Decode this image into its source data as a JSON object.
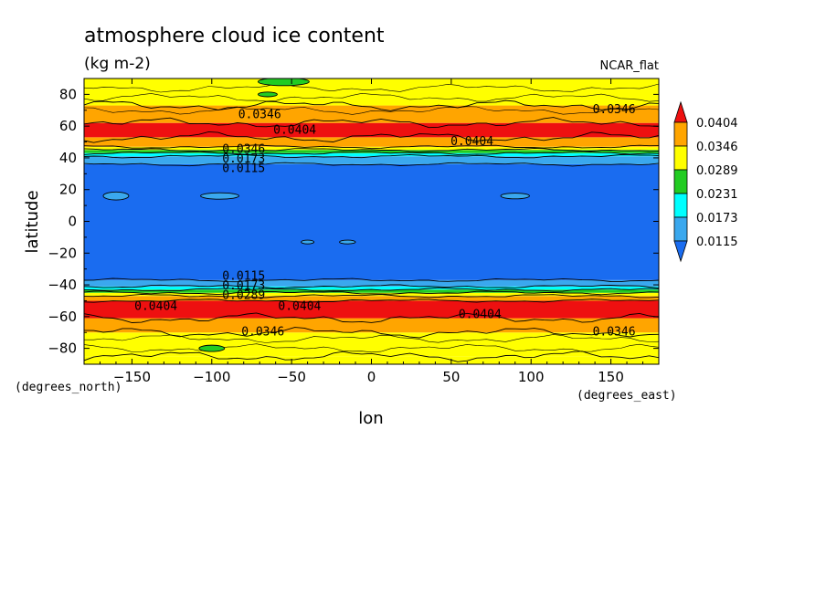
{
  "chart_data": {
    "type": "heatmap",
    "title": "atmosphere cloud ice content",
    "units": "(kg m-2)",
    "colormap_name": "NCAR_flat",
    "xlabel": "lon",
    "ylabel": "latitude",
    "x_unit_label": "(degrees_east)",
    "y_unit_label": "(degrees_north)",
    "xlim": [
      -180,
      180
    ],
    "ylim": [
      -90,
      90
    ],
    "xticks": [
      -150,
      -100,
      -50,
      0,
      50,
      100,
      150
    ],
    "yticks": [
      -80,
      -60,
      -40,
      -20,
      0,
      20,
      40,
      60,
      80
    ],
    "xtick_labels": [
      "−150",
      "−100",
      "−50",
      "0",
      "50",
      "100",
      "150"
    ],
    "ytick_labels": [
      "−80",
      "−60",
      "−40",
      "−20",
      "0",
      "20",
      "40",
      "60",
      "80"
    ],
    "colorbar": {
      "levels": [
        "0.0115",
        "0.0173",
        "0.0231",
        "0.0289",
        "0.0346",
        "0.0404"
      ],
      "colors": [
        "#1a6cf0",
        "#3aa8ee",
        "#00ffff",
        "#22cc22",
        "#ffff00",
        "#ffa500",
        "#ee1010"
      ]
    },
    "bands": [
      {
        "lat0": -90,
        "lat1": -85,
        "level": 4
      },
      {
        "lat0": -85,
        "lat1": -70,
        "level": 4
      },
      {
        "lat0": -70,
        "lat1": -61,
        "level": 5
      },
      {
        "lat0": -61,
        "lat1": -50,
        "level": 6
      },
      {
        "lat0": -50,
        "lat1": -47,
        "level": 5
      },
      {
        "lat0": -47,
        "lat1": -45,
        "level": 4
      },
      {
        "lat0": -45,
        "lat1": -43,
        "level": 3
      },
      {
        "lat0": -43,
        "lat1": -41,
        "level": 2
      },
      {
        "lat0": -41,
        "lat1": -37,
        "level": 1
      },
      {
        "lat0": -37,
        "lat1": 36,
        "level": 0
      },
      {
        "lat0": 36,
        "lat1": 41,
        "level": 1
      },
      {
        "lat0": 41,
        "lat1": 43,
        "level": 2
      },
      {
        "lat0": 43,
        "lat1": 45,
        "level": 3
      },
      {
        "lat0": 45,
        "lat1": 47,
        "level": 4
      },
      {
        "lat0": 47,
        "lat1": 53,
        "level": 5
      },
      {
        "lat0": 53,
        "lat1": 62,
        "level": 6
      },
      {
        "lat0": 62,
        "lat1": 73,
        "level": 5
      },
      {
        "lat0": 73,
        "lat1": 90,
        "level": 4
      }
    ],
    "patches": [
      {
        "lon": -55,
        "lat": 88,
        "rlon": 16,
        "rlat": 2.5,
        "level": 3
      },
      {
        "lon": -65,
        "lat": 80,
        "rlon": 6,
        "rlat": 1.5,
        "level": 3
      },
      {
        "lon": -100,
        "lat": -80,
        "rlon": 8,
        "rlat": 2,
        "level": 3
      },
      {
        "lon": -160,
        "lat": 16,
        "rlon": 8,
        "rlat": 2.5,
        "level": 1
      },
      {
        "lon": -95,
        "lat": 16,
        "rlon": 12,
        "rlat": 2,
        "level": 1
      },
      {
        "lon": 90,
        "lat": 16,
        "rlon": 9,
        "rlat": 1.8,
        "level": 1
      },
      {
        "lon": -40,
        "lat": -13,
        "rlon": 4,
        "rlat": 1.2,
        "level": 1
      },
      {
        "lon": -15,
        "lat": -13,
        "rlon": 5,
        "rlat": 1.2,
        "level": 1
      }
    ],
    "contour_labels": [
      {
        "text": "0.0346",
        "lon": -70,
        "lat": 68
      },
      {
        "text": "0.0404",
        "lon": -48,
        "lat": 58
      },
      {
        "text": "0.0404",
        "lon": 63,
        "lat": 51
      },
      {
        "text": "0.0346",
        "lon": 152,
        "lat": 71
      },
      {
        "text": "0.0346",
        "lon": -80,
        "lat": 46
      },
      {
        "text": "0.0173",
        "lon": -80,
        "lat": 40
      },
      {
        "text": "0.0115",
        "lon": -80,
        "lat": 34
      },
      {
        "text": "0.0115",
        "lon": -80,
        "lat": -34
      },
      {
        "text": "0.0173",
        "lon": -80,
        "lat": -40
      },
      {
        "text": "0.0289",
        "lon": -80,
        "lat": -46
      },
      {
        "text": "0.0404",
        "lon": -135,
        "lat": -53
      },
      {
        "text": "0.0404",
        "lon": -45,
        "lat": -53
      },
      {
        "text": "0.0404",
        "lon": 68,
        "lat": -58
      },
      {
        "text": "0.0346",
        "lon": -68,
        "lat": -69
      },
      {
        "text": "0.0346",
        "lon": 152,
        "lat": -69
      }
    ]
  }
}
